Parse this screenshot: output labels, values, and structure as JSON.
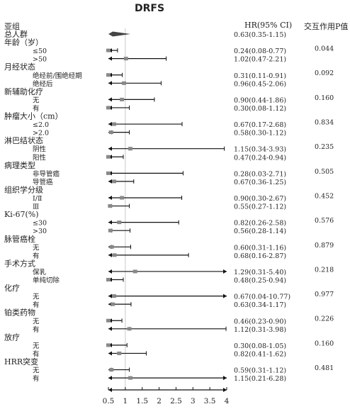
{
  "header": {
    "title": "DRFS",
    "col_subgroup": "亚组",
    "col_hr": "HR(95% CI)",
    "col_pint": "交互作用P值"
  },
  "chart_data": {
    "type": "forest",
    "title": "DRFS",
    "x_axis": {
      "ticks": [
        0.5,
        1,
        1.5,
        2,
        2.5,
        3,
        3.5,
        4
      ],
      "tick_labels": [
        "0.5",
        "1",
        "1.5",
        "2",
        "2.5",
        "3",
        "3.5",
        "4"
      ],
      "range": [
        0.5,
        4
      ],
      "reference_line": 1
    },
    "rows": [
      {
        "label": "总人群",
        "level": 0,
        "hr": 0.63,
        "lo": 0.35,
        "hi": 1.15,
        "ci_text": "0.63(0.35-1.15)",
        "p": "",
        "overall": true
      },
      {
        "label": "年龄（岁）",
        "level": 0,
        "p": "0.044"
      },
      {
        "label": "≤50",
        "level": 1,
        "hr": 0.24,
        "lo": 0.08,
        "hi": 0.77,
        "ci_text": "0.24(0.08-0.77)"
      },
      {
        "label": ">50",
        "level": 1,
        "hr": 1.02,
        "lo": 0.47,
        "hi": 2.21,
        "ci_text": "1.02(0.47-2.21)"
      },
      {
        "label": "月经状态",
        "level": 0,
        "p": "0.092"
      },
      {
        "label": "绝经前/围绝经期",
        "level": 1,
        "hr": 0.31,
        "lo": 0.11,
        "hi": 0.91,
        "ci_text": "0.31(0.11-0.91)"
      },
      {
        "label": "绝经后",
        "level": 1,
        "hr": 0.96,
        "lo": 0.45,
        "hi": 2.06,
        "ci_text": "0.96(0.45-2.06)"
      },
      {
        "label": "新辅助化疗",
        "level": 0,
        "p": "0.160"
      },
      {
        "label": "无",
        "level": 1,
        "hr": 0.9,
        "lo": 0.44,
        "hi": 1.86,
        "ci_text": "0.90(0.44-1.86)"
      },
      {
        "label": "有",
        "level": 1,
        "hr": 0.3,
        "lo": 0.08,
        "hi": 1.12,
        "ci_text": "0.30(0.08-1.12)"
      },
      {
        "label": "肿瘤大小（cm）",
        "level": 0,
        "p": "0.834"
      },
      {
        "label": "≤2.0",
        "level": 1,
        "hr": 0.67,
        "lo": 0.17,
        "hi": 2.68,
        "ci_text": "0.67(0.17-2.68)"
      },
      {
        "label": ">2.0",
        "level": 1,
        "hr": 0.58,
        "lo": 0.3,
        "hi": 1.12,
        "ci_text": "0.58(0.30-1.12)"
      },
      {
        "label": "淋巴结状态",
        "level": 0,
        "p": "0.235"
      },
      {
        "label": "阴性",
        "level": 1,
        "hr": 1.15,
        "lo": 0.34,
        "hi": 3.93,
        "ci_text": "1.15(0.34-3.93)"
      },
      {
        "label": "阳性",
        "level": 1,
        "hr": 0.47,
        "lo": 0.24,
        "hi": 0.94,
        "ci_text": "0.47(0.24-0.94)"
      },
      {
        "label": "病理类型",
        "level": 0,
        "p": "0.505"
      },
      {
        "label": "非导管癌",
        "level": 1,
        "hr": 0.28,
        "lo": 0.03,
        "hi": 2.71,
        "ci_text": "0.28(0.03-2.71)"
      },
      {
        "label": "导管癌",
        "level": 1,
        "hr": 0.67,
        "lo": 0.36,
        "hi": 1.25,
        "ci_text": "0.67(0.36-1.25)"
      },
      {
        "label": "组织学分级",
        "level": 0,
        "p": "0.452"
      },
      {
        "label": "Ⅰ/Ⅱ",
        "level": 1,
        "hr": 0.9,
        "lo": 0.3,
        "hi": 2.67,
        "ci_text": "0.90(0.30-2.67)"
      },
      {
        "label": "Ⅲ",
        "level": 1,
        "hr": 0.55,
        "lo": 0.27,
        "hi": 1.12,
        "ci_text": "0.55(0.27-1.12)"
      },
      {
        "label": "Ki-67(%)",
        "level": 0,
        "p": "0.576"
      },
      {
        "label": "≤30",
        "level": 1,
        "hr": 0.82,
        "lo": 0.26,
        "hi": 2.58,
        "ci_text": "0.82(0.26-2.58)"
      },
      {
        "label": ">30",
        "level": 1,
        "hr": 0.56,
        "lo": 0.28,
        "hi": 1.14,
        "ci_text": "0.56(0.28-1.14)"
      },
      {
        "label": "脉管癌栓",
        "level": 0,
        "p": "0.879"
      },
      {
        "label": "无",
        "level": 1,
        "hr": 0.6,
        "lo": 0.31,
        "hi": 1.16,
        "ci_text": "0.60(0.31-1.16)"
      },
      {
        "label": "有",
        "level": 1,
        "hr": 0.68,
        "lo": 0.16,
        "hi": 2.87,
        "ci_text": "0.68(0.16-2.87)"
      },
      {
        "label": "手术方式",
        "level": 0,
        "p": "0.218"
      },
      {
        "label": "保乳",
        "level": 1,
        "hr": 1.29,
        "lo": 0.31,
        "hi": 5.4,
        "ci_text": "1.29(0.31-5.40)"
      },
      {
        "label": "单纯切除",
        "level": 1,
        "hr": 0.48,
        "lo": 0.25,
        "hi": 0.94,
        "ci_text": "0.48(0.25-0.94)"
      },
      {
        "label": "化疗",
        "level": 0,
        "p": "0.977"
      },
      {
        "label": "无",
        "level": 1,
        "hr": 0.67,
        "lo": 0.04,
        "hi": 10.77,
        "ci_text": "0.67(0.04-10.77)"
      },
      {
        "label": "有",
        "level": 1,
        "hr": 0.63,
        "lo": 0.34,
        "hi": 1.17,
        "ci_text": "0.63(0.34-1.17)"
      },
      {
        "label": "铂类药物",
        "level": 0,
        "p": "0.226"
      },
      {
        "label": "无",
        "level": 1,
        "hr": 0.46,
        "lo": 0.23,
        "hi": 0.9,
        "ci_text": "0.46(0.23-0.90)"
      },
      {
        "label": "有",
        "level": 1,
        "hr": 1.12,
        "lo": 0.31,
        "hi": 3.98,
        "ci_text": "1.12(0.31-3.98)"
      },
      {
        "label": "放疗",
        "level": 0,
        "p": "0.160"
      },
      {
        "label": "无",
        "level": 1,
        "hr": 0.3,
        "lo": 0.08,
        "hi": 1.05,
        "ci_text": "0.30(0.08-1.05)"
      },
      {
        "label": "有",
        "level": 1,
        "hr": 0.82,
        "lo": 0.41,
        "hi": 1.62,
        "ci_text": "0.82(0.41-1.62)"
      },
      {
        "label": "HRR突变",
        "level": 0,
        "p": "0.481"
      },
      {
        "label": "无",
        "level": 1,
        "hr": 0.59,
        "lo": 0.31,
        "hi": 1.12,
        "ci_text": "0.59(0.31-1.12)"
      },
      {
        "label": "有",
        "level": 1,
        "hr": 1.15,
        "lo": 0.21,
        "hi": 6.28,
        "ci_text": "1.15(0.21-6.28)"
      }
    ]
  }
}
